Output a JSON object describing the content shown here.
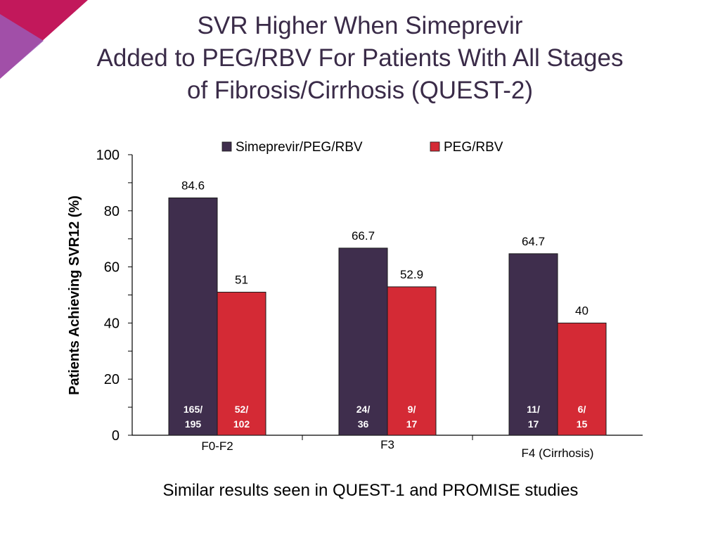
{
  "title_lines": [
    "SVR Higher When Simeprevir",
    "Added to PEG/RBV For Patients With All Stages",
    "of Fibrosis/Cirrhosis (QUEST-2)"
  ],
  "footer": "Similar results seen in QUEST-1 and PROMISE studies",
  "colors": {
    "series1": "#3f2e4d",
    "series2": "#d42a35",
    "title": "#3a2b48",
    "accent_pink": "#c2185b",
    "accent_purple": "#8e44ad"
  },
  "chart_data": {
    "type": "bar",
    "title": "",
    "xlabel": "",
    "ylabel": "Patients Achieving SVR12 (%)",
    "ylim": [
      0,
      100
    ],
    "yticks": [
      "0",
      "20",
      "40",
      "60",
      "80",
      "100"
    ],
    "categories": [
      "F0-F2",
      "F3",
      "F4 (Cirrhosis)"
    ],
    "series": [
      {
        "name": "Simeprevir/PEG/RBV",
        "values": [
          84.6,
          66.7,
          64.7
        ],
        "value_labels": [
          "84.6",
          "66.7",
          "64.7"
        ],
        "counts": [
          [
            "165/",
            "195"
          ],
          [
            "24/",
            "36"
          ],
          [
            "11/",
            "17"
          ]
        ]
      },
      {
        "name": "PEG/RBV",
        "values": [
          51,
          52.9,
          40
        ],
        "value_labels": [
          "51",
          "52.9",
          "40"
        ],
        "counts": [
          [
            "52/",
            "102"
          ],
          [
            "9/",
            "17"
          ],
          [
            "6/",
            "15"
          ]
        ]
      }
    ],
    "legend_position": "top"
  }
}
